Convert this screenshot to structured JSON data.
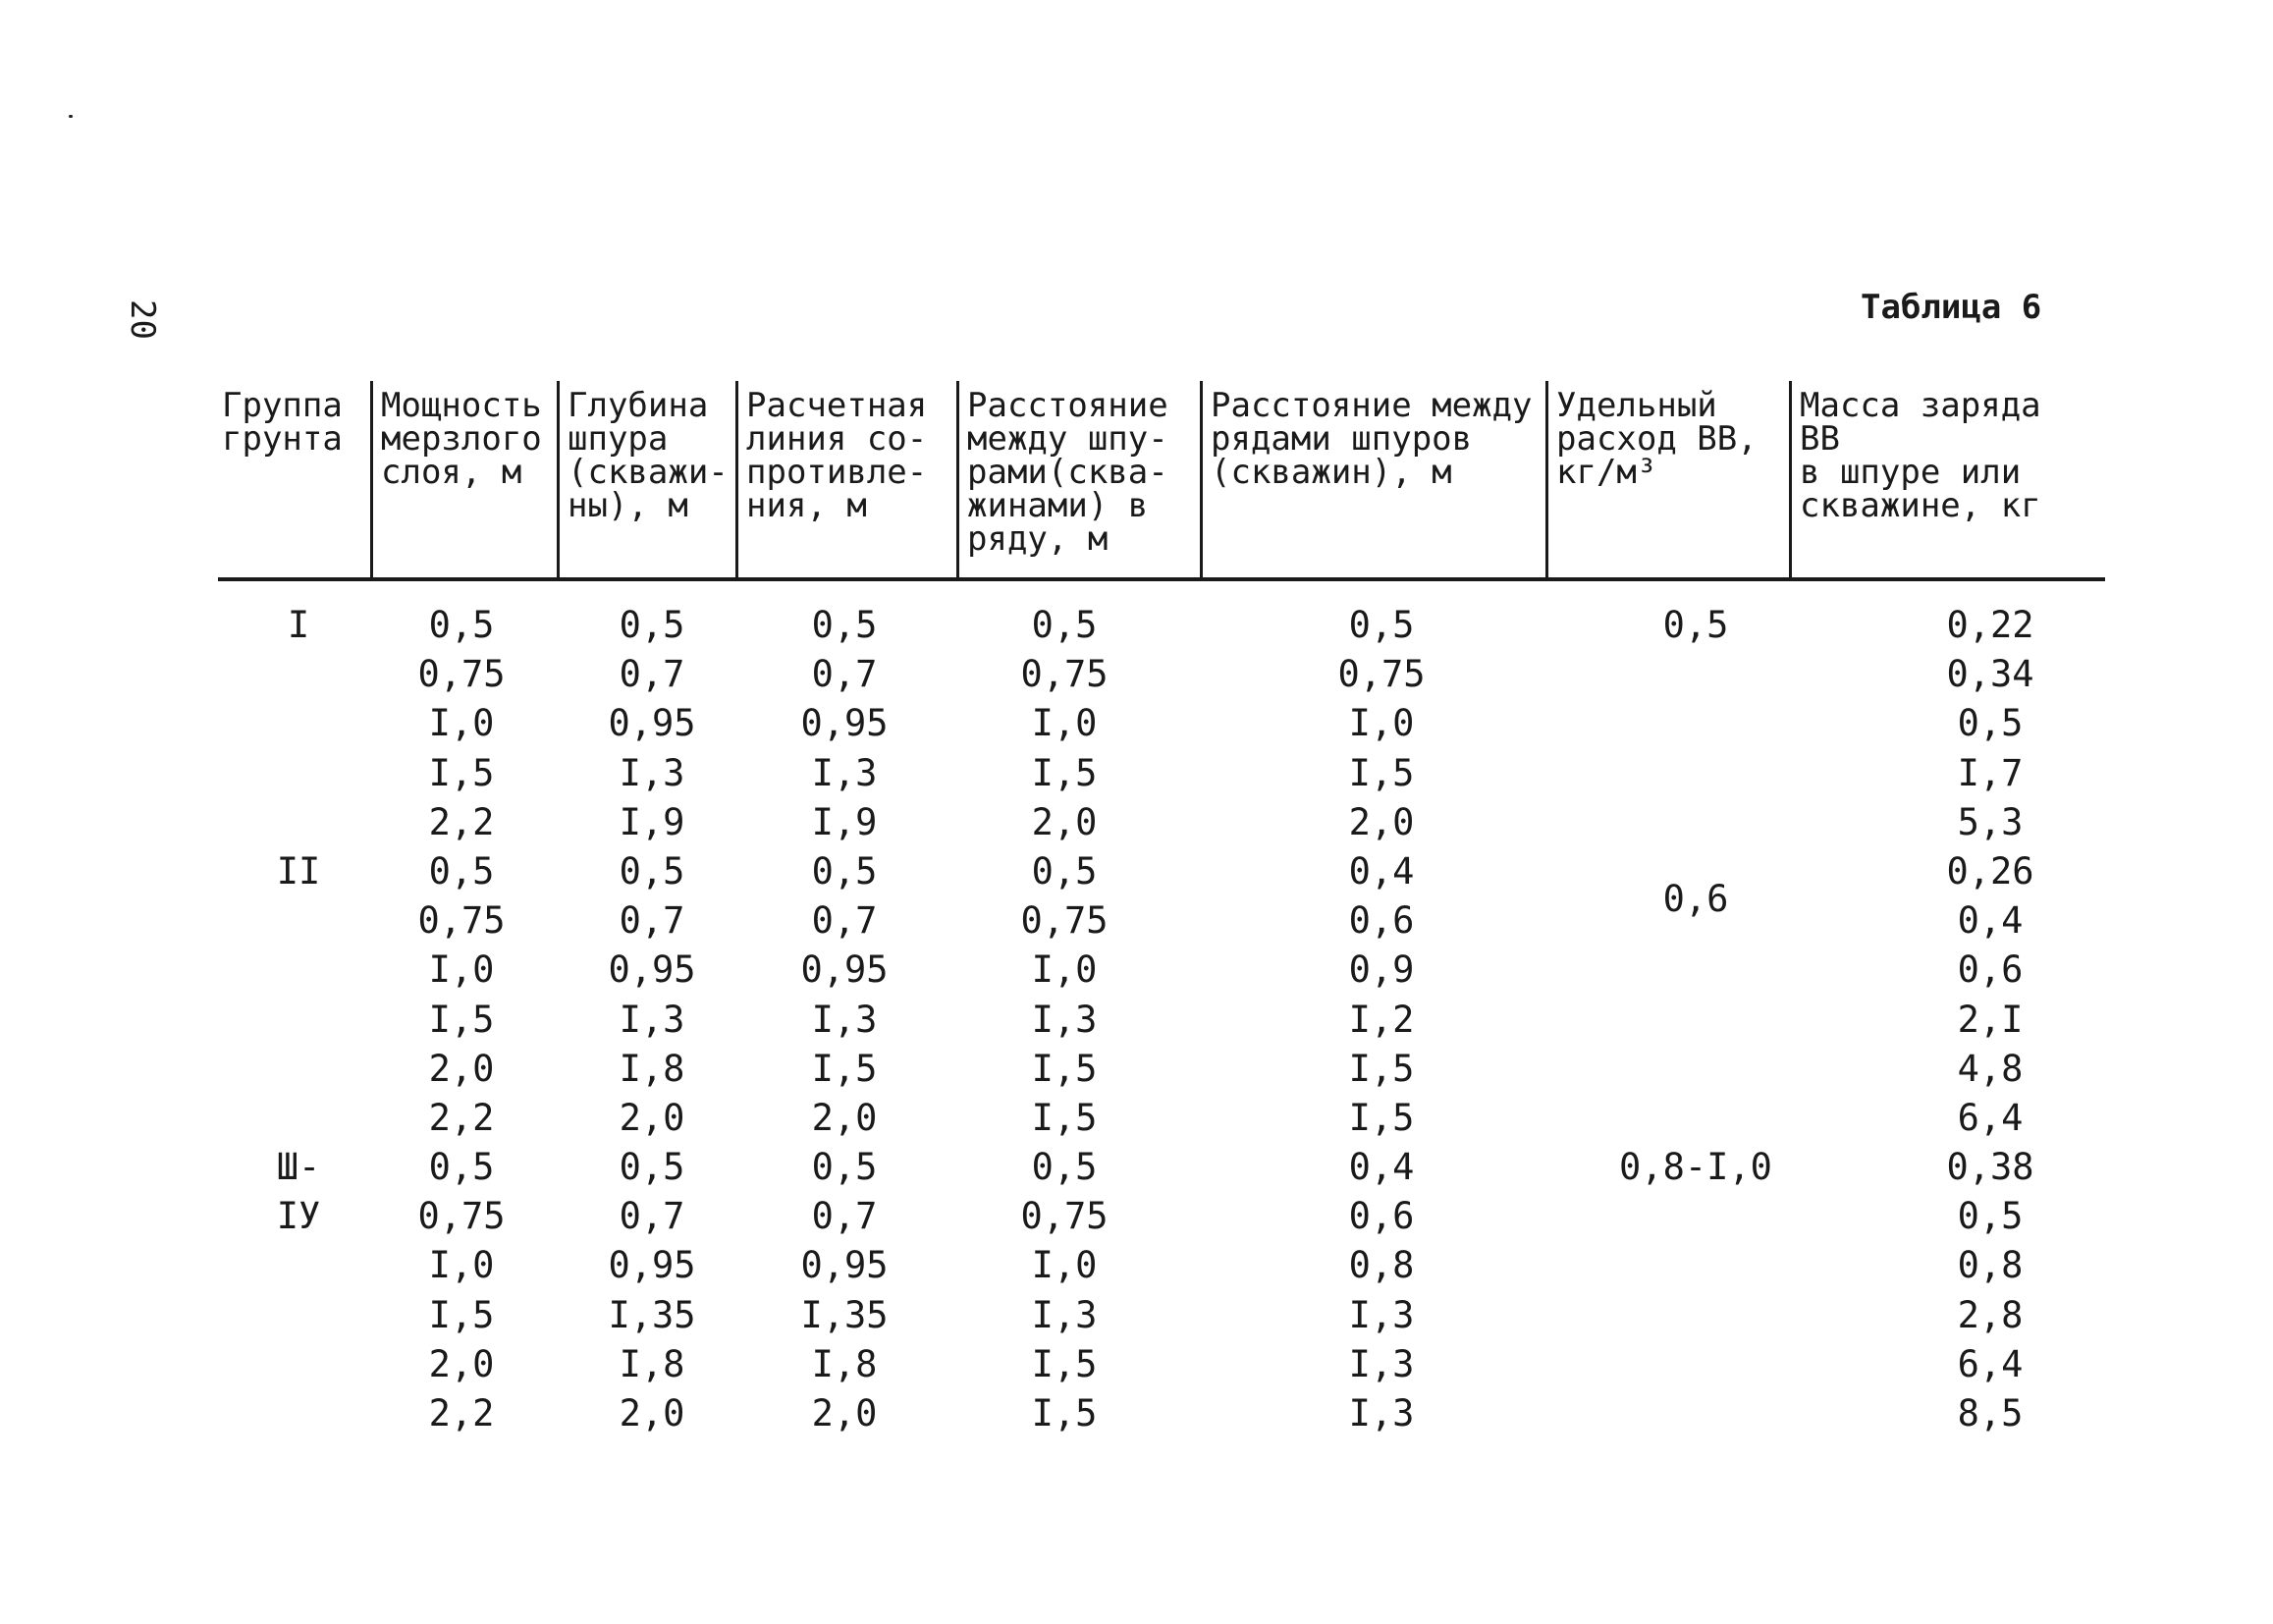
{
  "page_number": "20",
  "table_title": "Таблица 6",
  "columns": [
    "Группа\nгрунта",
    "Мощность\nмерзлого\nслоя, м",
    "Глубина\nшпура\n(скважи-\nны), м",
    "Расчетная\nлиния со-\nпротивле-\nния, м",
    "Расстояние\nмежду шпу-\nрами(сква-\nжинами) в\nряду, м",
    "Расстояние между\nрядами шпуров\n(скважин), м",
    "Удельный\nрасход ВВ,\nкг/м³",
    "Масса заряда ВВ\nв шпуре или\nскважине, кг"
  ],
  "rows": [
    {
      "group": "I",
      "thickness": "0,5",
      "depth": "0,5",
      "resistance": "0,5",
      "spacing": "0,5",
      "row_spacing": "0,5",
      "consumption": "0,5",
      "charge": "0,22"
    },
    {
      "group": "",
      "thickness": "0,75",
      "depth": "0,7",
      "resistance": "0,7",
      "spacing": "0,75",
      "row_spacing": "0,75",
      "consumption": "",
      "charge": "0,34"
    },
    {
      "group": "",
      "thickness": "I,0",
      "depth": "0,95",
      "resistance": "0,95",
      "spacing": "I,0",
      "row_spacing": "I,0",
      "consumption": "",
      "charge": "0,5"
    },
    {
      "group": "",
      "thickness": "I,5",
      "depth": "I,3",
      "resistance": "I,3",
      "spacing": "I,5",
      "row_spacing": "I,5",
      "consumption": "",
      "charge": "I,7"
    },
    {
      "group": "",
      "thickness": "2,2",
      "depth": "I,9",
      "resistance": "I,9",
      "spacing": "2,0",
      "row_spacing": "2,0",
      "consumption": "",
      "charge": "5,3"
    },
    {
      "group": "II",
      "thickness": "0,5",
      "depth": "0,5",
      "resistance": "0,5",
      "spacing": "0,5",
      "row_spacing": "0,4",
      "consumption": "",
      "charge": "0,26"
    },
    {
      "group": "",
      "thickness": "0,75",
      "depth": "0,7",
      "resistance": "0,7",
      "spacing": "0,75",
      "row_spacing": "0,6",
      "consumption": "",
      "charge": "0,4"
    },
    {
      "group": "",
      "thickness": "I,0",
      "depth": "0,95",
      "resistance": "0,95",
      "spacing": "I,0",
      "row_spacing": "0,9",
      "consumption": "",
      "charge": "0,6"
    },
    {
      "group": "",
      "thickness": "I,5",
      "depth": "I,3",
      "resistance": "I,3",
      "spacing": "I,3",
      "row_spacing": "I,2",
      "consumption": "",
      "charge": "2,I"
    },
    {
      "group": "",
      "thickness": "2,0",
      "depth": "I,8",
      "resistance": "I,5",
      "spacing": "I,5",
      "row_spacing": "I,5",
      "consumption": "",
      "charge": "4,8"
    },
    {
      "group": "",
      "thickness": "2,2",
      "depth": "2,0",
      "resistance": "2,0",
      "spacing": "I,5",
      "row_spacing": "I,5",
      "consumption": "",
      "charge": "6,4"
    },
    {
      "group": "Ш-",
      "thickness": "0,5",
      "depth": "0,5",
      "resistance": "0,5",
      "spacing": "0,5",
      "row_spacing": "0,4",
      "consumption": "0,8-I,0",
      "charge": "0,38"
    },
    {
      "group": "IУ",
      "thickness": "0,75",
      "depth": "0,7",
      "resistance": "0,7",
      "spacing": "0,75",
      "row_spacing": "0,6",
      "consumption": "",
      "charge": "0,5"
    },
    {
      "group": "",
      "thickness": "I,0",
      "depth": "0,95",
      "resistance": "0,95",
      "spacing": "I,0",
      "row_spacing": "0,8",
      "consumption": "",
      "charge": "0,8"
    },
    {
      "group": "",
      "thickness": "I,5",
      "depth": "I,35",
      "resistance": "I,35",
      "spacing": "I,3",
      "row_spacing": "I,3",
      "consumption": "",
      "charge": "2,8"
    },
    {
      "group": "",
      "thickness": "2,0",
      "depth": "I,8",
      "resistance": "I,8",
      "spacing": "I,5",
      "row_spacing": "I,3",
      "consumption": "",
      "charge": "6,4"
    },
    {
      "group": "",
      "thickness": "2,2",
      "depth": "2,0",
      "resistance": "2,0",
      "spacing": "I,5",
      "row_spacing": "I,3",
      "consumption": "",
      "charge": "8,5"
    }
  ],
  "group_II_consumption": "0,6"
}
